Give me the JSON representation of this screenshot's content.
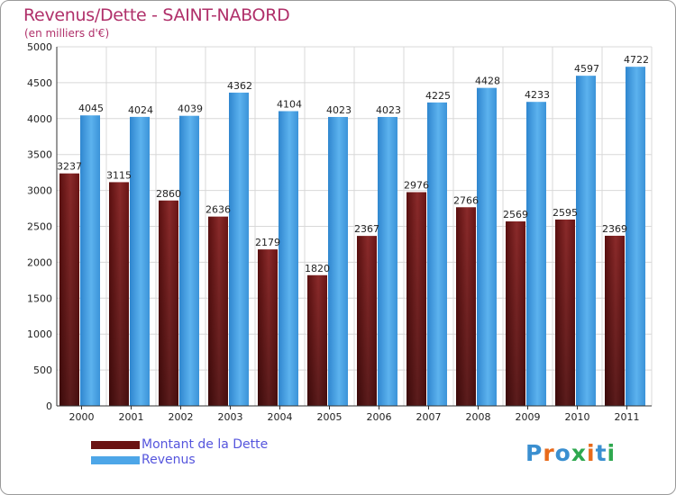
{
  "header": {
    "title": "Revenus/Dette - SAINT-NABORD",
    "subtitle": "(en milliers d'€)"
  },
  "logo": {
    "text": "Proxiti",
    "colors": [
      "#3a8fd0",
      "#e86a1a",
      "#3a8fd0",
      "#2fa84f",
      "#e86a1a",
      "#3a8fd0",
      "#2fa84f"
    ]
  },
  "legend": {
    "items": [
      {
        "label": "Montant de la Dette",
        "color": "#7a1a1a"
      },
      {
        "label": "Revenus",
        "color": "#4da6e8"
      }
    ]
  },
  "chart_data": {
    "type": "bar",
    "categories": [
      "2000",
      "2001",
      "2002",
      "2003",
      "2004",
      "2005",
      "2006",
      "2007",
      "2008",
      "2009",
      "2010",
      "2011"
    ],
    "series": [
      {
        "name": "Montant de la Dette",
        "color": "#7a1a1a",
        "values": [
          3237,
          3115,
          2860,
          2636,
          2179,
          1820,
          2367,
          2976,
          2766,
          2569,
          2595,
          2369
        ],
        "labels": [
          "3237",
          "3115",
          "2860",
          "2636",
          "2179",
          "1820",
          "2367",
          "2976",
          "2766",
          "2569",
          "2595",
          "2369"
        ]
      },
      {
        "name": "Revenus",
        "color": "#4da6e8",
        "values": [
          4045,
          4024,
          4039,
          4362,
          4104,
          4023,
          4023,
          4225,
          4428,
          4233,
          4597,
          4722
        ],
        "labels": [
          "4045",
          "4024",
          "4039",
          "4362",
          "4104",
          "4023",
          "4023",
          "4225",
          "4428",
          "4233",
          "4597",
          "4722"
        ]
      }
    ],
    "title": "Revenus/Dette - SAINT-NABORD",
    "ylabel": "(en milliers d'€)",
    "ylim": [
      0,
      5000
    ],
    "yticks": [
      0,
      500,
      1000,
      1500,
      2000,
      2500,
      3000,
      3500,
      4000,
      4500,
      5000
    ],
    "ytick_labels": [
      "0",
      "500",
      "1000",
      "1500",
      "2000",
      "2500",
      "3000",
      "3500",
      "4000",
      "4500",
      "5000"
    ],
    "grid": true,
    "legend_position": "bottom-left"
  }
}
